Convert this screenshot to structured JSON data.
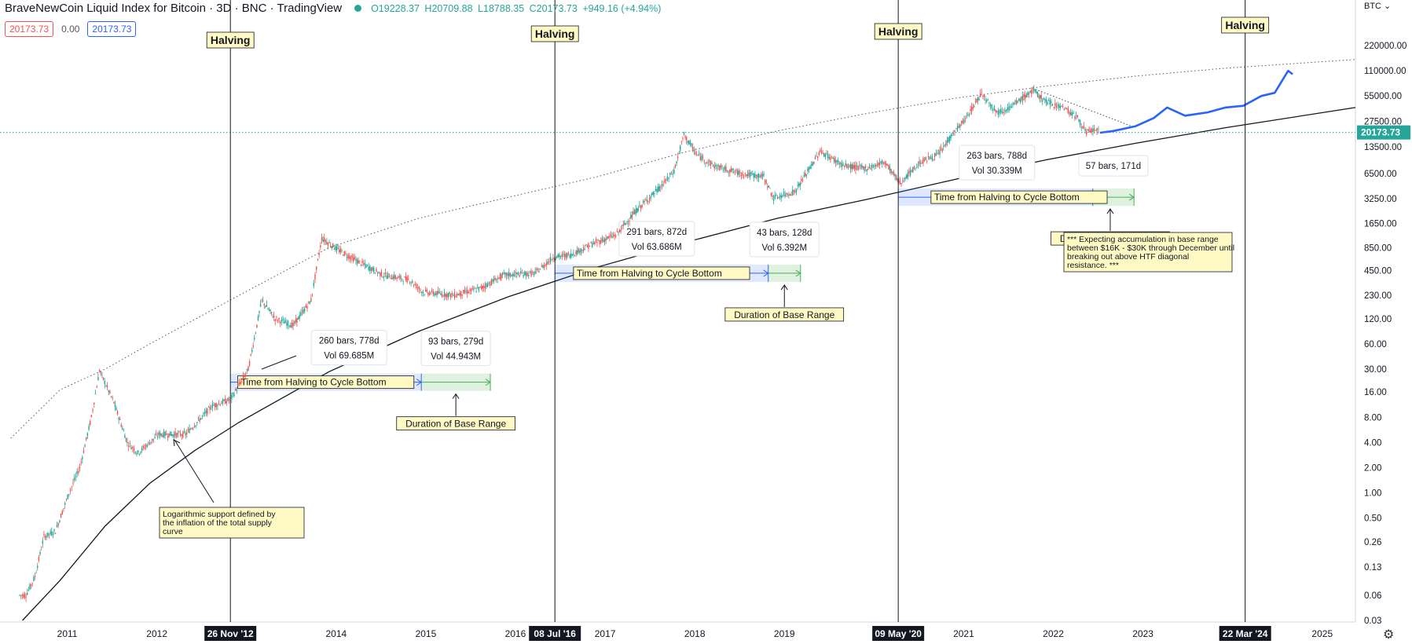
{
  "header": {
    "title": "BraveNewCoin Liquid Index for Bitcoin · 3D · BNC · TradingView",
    "open": "O19228.37",
    "high": "H20709.88",
    "low": "L18788.35",
    "close": "C20173.73",
    "change": "+949.16 (+4.94%)",
    "chip_price": "20173.73",
    "chip_mid": "0.00",
    "chip_price2": "20173.73"
  },
  "currency": "BTC",
  "colors": {
    "up": "#26a69a",
    "down": "#ef5350",
    "projection": "#2962ff",
    "axis_label_bg": "#26a69a",
    "note_bg": "#fff9c4",
    "time_box": "rgba(41,98,255,0.15)",
    "base_box": "rgba(76,175,80,0.18)"
  },
  "chart_data": {
    "type": "line",
    "scale": "log",
    "title": "BraveNewCoin Liquid Index for Bitcoin · 3D · BNC",
    "ylabel": "",
    "xlabel": "",
    "y_ticks": [
      "0.03",
      "0.06",
      "0.13",
      "0.26",
      "0.50",
      "1.00",
      "2.00",
      "4.00",
      "8.00",
      "16.00",
      "30.00",
      "60.00",
      "120.00",
      "230.00",
      "450.00",
      "850.00",
      "1650.00",
      "3250.00",
      "6500.00",
      "13500.00",
      "27500.00",
      "55000.00",
      "110000.00",
      "220000.00"
    ],
    "x_ticks": [
      "2011",
      "2012",
      "2014",
      "2015",
      "2016",
      "2017",
      "2018",
      "2019",
      "2021",
      "2022",
      "2023",
      "2025"
    ],
    "last_price": "20173.73",
    "series": [
      {
        "kind": "price",
        "x": [
          2010.55,
          2010.62,
          2010.72,
          2010.82,
          2010.95,
          2011.1,
          2011.22,
          2011.35,
          2011.44,
          2011.6,
          2011.75,
          2011.87,
          2012.1,
          2012.4,
          2012.7,
          2012.9,
          2013.1,
          2013.25,
          2013.4,
          2013.6,
          2013.8,
          2013.92,
          2014.1,
          2014.3,
          2014.6,
          2014.9,
          2015.05,
          2015.4,
          2015.7,
          2015.95,
          2016.3,
          2016.5,
          2016.7,
          2016.95,
          2017.2,
          2017.45,
          2017.7,
          2017.85,
          2017.96,
          2018.1,
          2018.3,
          2018.6,
          2018.85,
          2018.96,
          2019.2,
          2019.48,
          2019.75,
          2020.0,
          2020.2,
          2020.37,
          2020.6,
          2020.8,
          2020.95,
          2021.1,
          2021.28,
          2021.45,
          2021.6,
          2021.85,
          2022.0,
          2022.2,
          2022.35,
          2022.45,
          2022.55,
          2022.6
        ],
        "y": [
          0.06,
          0.06,
          0.1,
          0.3,
          0.35,
          1.0,
          2.0,
          8.0,
          29.0,
          12.0,
          4.0,
          3.0,
          5.0,
          5.0,
          11.0,
          13.0,
          30.0,
          200.0,
          120.0,
          100.0,
          200.0,
          1100.0,
          800.0,
          600.0,
          400.0,
          350.0,
          250.0,
          230.0,
          280.0,
          400.0,
          420.0,
          650.0,
          700.0,
          950.0,
          1200.0,
          2500.0,
          4500.0,
          7000.0,
          19000.0,
          11000.0,
          8000.0,
          6500.0,
          6000.0,
          3300.0,
          4000.0,
          12000.0,
          8000.0,
          7500.0,
          9000.0,
          5000.0,
          9000.0,
          11000.0,
          19000.0,
          29000.0,
          60000.0,
          35000.0,
          40000.0,
          64000.0,
          47000.0,
          40000.0,
          30000.0,
          20000.0,
          22000.0,
          20173.73
        ]
      },
      {
        "kind": "projection",
        "x": [
          2022.6,
          2022.75,
          2023.0,
          2023.2,
          2023.35,
          2023.55,
          2023.8,
          2024.0,
          2024.2,
          2024.4,
          2024.55,
          2024.7,
          2024.75
        ],
        "y": [
          20000.0,
          21000.0,
          24000.0,
          30000.0,
          40000.0,
          32000.0,
          35000.0,
          40000.0,
          42000.0,
          55000.0,
          60000.0,
          110000.0,
          100000.0
        ]
      }
    ],
    "halvings": [
      {
        "label": "Halving",
        "date": "26 Nov '12",
        "x": 2012.9
      },
      {
        "label": "Halving",
        "date": "08 Jul '16",
        "x": 2016.52
      },
      {
        "label": "Halving",
        "date": "09 May '20",
        "x": 2020.35
      },
      {
        "label": "Halving",
        "date": "22 Mar '24",
        "x": 2024.22
      }
    ],
    "cycle_ranges": [
      {
        "time_label": "Time from Halving to Cycle Bottom",
        "time_stats": [
          "260 bars, 778d",
          "Vol 69.685M"
        ],
        "x0": 2012.9,
        "x1": 2015.03,
        "y": 21,
        "base_label": "Duration of Base Range",
        "base_stats": [
          "93 bars, 279d",
          "Vol 44.943M"
        ],
        "bx1": 2015.8
      },
      {
        "time_label": "Time from Halving to Cycle Bottom",
        "time_stats": [
          "291 bars, 872d",
          "Vol 63.686M"
        ],
        "x0": 2016.52,
        "x1": 2018.9,
        "y": 420,
        "base_label": "Duration of Base Range",
        "base_stats": [
          "43 bars, 128d",
          "Vol 6.392M"
        ],
        "bx1": 2019.26
      },
      {
        "time_label": "Time from Halving to Cycle Bottom",
        "time_stats": [
          "263 bars, 788d",
          "Vol 30.339M"
        ],
        "x0": 2020.35,
        "x1": 2022.52,
        "y": 3400,
        "base_label": "Duration of Base Range",
        "base_stats": [
          "57 bars, 171d"
        ],
        "bx1": 2022.98
      }
    ],
    "annotations": [
      "Logarithmic support defined by the inflation of the total supply curve",
      "*** Expecting accumulation in base range between $16K - $30K through December until breaking out above HTF diagonal resistance. ***"
    ]
  }
}
